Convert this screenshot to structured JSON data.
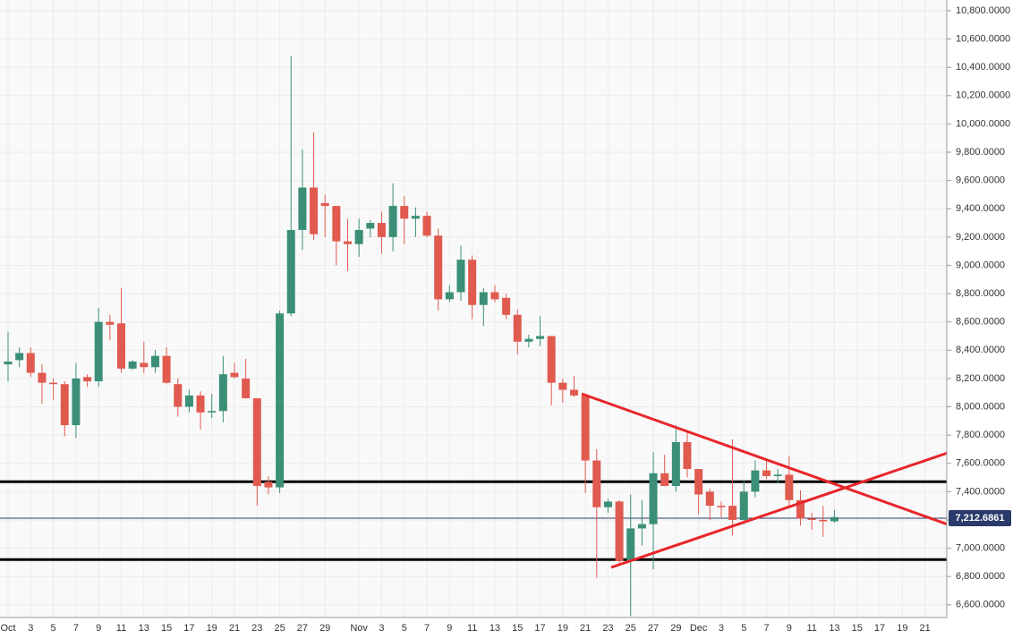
{
  "chart_data": {
    "type": "candlestick",
    "categories": [
      "Oct",
      null,
      "3",
      null,
      "5",
      null,
      "7",
      null,
      "9",
      null,
      "11",
      null,
      "13",
      null,
      "15",
      null,
      "17",
      null,
      "19",
      null,
      "21",
      null,
      "23",
      null,
      "25",
      null,
      "27",
      null,
      "29",
      null,
      null,
      "Nov",
      null,
      "3",
      null,
      "5",
      null,
      "7",
      null,
      "9",
      null,
      "11",
      null,
      "13",
      null,
      "15",
      null,
      "17",
      null,
      "19",
      null,
      "21",
      null,
      "23",
      null,
      "25",
      null,
      "27",
      null,
      "29",
      null,
      "Dec",
      null,
      "3",
      null,
      "5",
      null,
      "7",
      null,
      "9",
      null,
      "11",
      null,
      "13",
      null,
      "15",
      null,
      "17",
      null,
      "19",
      null,
      "21",
      null
    ],
    "open": [
      8300,
      8330,
      8380,
      8240,
      8170,
      8160,
      7870,
      8210,
      8180,
      8600,
      8590,
      8270,
      8310,
      8280,
      8360,
      8160,
      8000,
      8080,
      7960,
      7970,
      8240,
      8200,
      8060,
      7470,
      7430,
      8660,
      9250,
      9550,
      9440,
      9420,
      9170,
      9150,
      9260,
      9300,
      9200,
      9420,
      9330,
      9350,
      9210,
      8760,
      8810,
      9040,
      8720,
      8810,
      8770,
      8650,
      8460,
      8480,
      8500,
      8170,
      8120,
      8080,
      7620,
      7290,
      7330,
      6910,
      7140,
      7170,
      7530,
      7440,
      7750,
      7560,
      7400,
      7300,
      7300,
      7200,
      7400,
      7550,
      7510,
      7520,
      7340,
      7210,
      7200,
      7190,
      null,
      null,
      null,
      null,
      null,
      null,
      null,
      null,
      null
    ],
    "high": [
      8530,
      8420,
      8420,
      8300,
      8200,
      8180,
      8310,
      8230,
      8700,
      8650,
      8840,
      8330,
      8460,
      8400,
      8420,
      8200,
      8120,
      8110,
      8090,
      8360,
      8310,
      8340,
      8060,
      7510,
      8680,
      10480,
      9820,
      9940,
      9500,
      9420,
      9330,
      9330,
      9320,
      9380,
      9580,
      9490,
      9410,
      9380,
      9260,
      8860,
      9140,
      9070,
      8840,
      8860,
      8800,
      8690,
      8510,
      8640,
      8500,
      8200,
      8220,
      8090,
      7700,
      7350,
      7340,
      7380,
      7340,
      7680,
      7660,
      7870,
      7830,
      7560,
      7420,
      7330,
      7770,
      7480,
      7620,
      7630,
      7560,
      7650,
      7410,
      7250,
      7300,
      7270,
      null,
      null,
      null,
      null,
      null,
      null,
      null,
      null,
      null
    ],
    "low": [
      8180,
      8280,
      8210,
      8020,
      8050,
      7790,
      7780,
      8140,
      8140,
      8470,
      8240,
      8260,
      8240,
      8240,
      8160,
      7930,
      7960,
      7840,
      7920,
      7890,
      8200,
      8060,
      7300,
      7380,
      7390,
      8640,
      9110,
      9180,
      9200,
      9000,
      8960,
      9060,
      9200,
      9080,
      9100,
      9150,
      9200,
      9200,
      8680,
      8740,
      8750,
      8620,
      8570,
      8740,
      8620,
      8370,
      8420,
      8430,
      8010,
      8030,
      8070,
      7390,
      6790,
      7250,
      6890,
      6520,
      7020,
      6850,
      7440,
      7400,
      7500,
      7240,
      7200,
      7220,
      7090,
      7170,
      7360,
      7490,
      7460,
      7300,
      7160,
      7130,
      7080,
      7180,
      null,
      null,
      null,
      null,
      null,
      null,
      null,
      null,
      null
    ],
    "close": [
      8320,
      8380,
      8240,
      8170,
      8160,
      7870,
      8200,
      8180,
      8600,
      8580,
      8270,
      8320,
      8280,
      8360,
      8170,
      8000,
      8080,
      7960,
      7970,
      8230,
      8210,
      8060,
      7440,
      7430,
      8660,
      9250,
      9550,
      9220,
      9420,
      9170,
      9150,
      9250,
      9300,
      9200,
      9420,
      9330,
      9350,
      9210,
      8760,
      8810,
      9040,
      8720,
      8810,
      8760,
      8650,
      8460,
      8480,
      8500,
      8170,
      8120,
      8080,
      7620,
      7290,
      7330,
      6910,
      7140,
      7170,
      7530,
      7440,
      7750,
      7560,
      7380,
      7300,
      7290,
      7200,
      7400,
      7550,
      7510,
      7520,
      7340,
      7210,
      7200,
      7190,
      7220,
      null,
      null,
      null,
      null,
      null,
      null,
      null,
      null,
      null
    ],
    "up_color": "#3b8f77",
    "down_color": "#e05a4f",
    "ylim": [
      6510,
      10876
    ],
    "yticks": [
      {
        "value": 6600,
        "label": "6,600.0000"
      },
      {
        "value": 6800,
        "label": "6,800.0000"
      },
      {
        "value": 7000,
        "label": "7,000.0000"
      },
      {
        "value": 7200,
        "label": "7,200.0000"
      },
      {
        "value": 7400,
        "label": "7,400.0000"
      },
      {
        "value": 7600,
        "label": "7,600.0000"
      },
      {
        "value": 7800,
        "label": "7,800.0000"
      },
      {
        "value": 8000,
        "label": "8,000.0000"
      },
      {
        "value": 8200,
        "label": "8,200.0000"
      },
      {
        "value": 8400,
        "label": "8,400.0000"
      },
      {
        "value": 8600,
        "label": "8,600.0000"
      },
      {
        "value": 8800,
        "label": "8,800.0000"
      },
      {
        "value": 9000,
        "label": "9,000.0000"
      },
      {
        "value": 9200,
        "label": "9,200.0000"
      },
      {
        "value": 9400,
        "label": "9,400.0000"
      },
      {
        "value": 9600,
        "label": "9,600.0000"
      },
      {
        "value": 9800,
        "label": "9,800.0000"
      },
      {
        "value": 10000,
        "label": "10,000.0000"
      },
      {
        "value": 10200,
        "label": "10,200.0000"
      },
      {
        "value": 10400,
        "label": "10,400.0000"
      },
      {
        "value": 10600,
        "label": "10,600.0000"
      },
      {
        "value": 10800,
        "label": "10,800.0000"
      }
    ],
    "grid": true,
    "levels": [
      7470,
      6920
    ],
    "last_price": {
      "value": 7212.6861,
      "label": "7,212.6861"
    }
  }
}
